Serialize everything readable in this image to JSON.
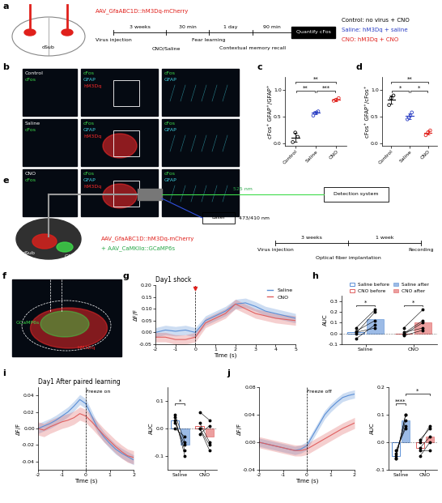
{
  "panel_letters": [
    "a",
    "b",
    "c",
    "d",
    "e",
    "f",
    "g",
    "h",
    "i",
    "j"
  ],
  "panel_a": {
    "virus": "AAV_GfaABC1D::hM3Dq-mCherry",
    "region": "dSub",
    "timeline": {
      "events": [
        "Virus injection",
        "CNO/Saline",
        "Fear learning",
        "Contextual memory recall"
      ],
      "intervals": [
        "3 weeks",
        "30 min",
        "1 day",
        "90 min"
      ],
      "endpoint": "Quantify cFos"
    },
    "groups": [
      {
        "text": "Control: no virus + CNO",
        "color": "#000000"
      },
      {
        "text": "Saline: hM3Dq + saline",
        "color": "#2b3fc4"
      },
      {
        "text": "CNO: hM3Dq + CNO",
        "color": "#e0201b"
      }
    ]
  },
  "panel_b": {
    "rows": [
      "Control",
      "Saline",
      "CNO"
    ],
    "channels": {
      "cFos": "#3ddc4a",
      "GFAP": "#3fd0e0",
      "hM3Dq": "#ff2a2a"
    },
    "columns": [
      [
        "cFos"
      ],
      [
        "cFos",
        "GFAP",
        "hM3Dq"
      ],
      [
        "cFos",
        "GFAP"
      ]
    ]
  },
  "panel_e": {
    "virus": [
      {
        "text": "AAV_GfaABC1D::hM3Dq-mCherry",
        "color": "#e0201b"
      },
      {
        "text": "+ AAV_CaMKIIα::GCaMP6s",
        "color": "#2aa84a"
      }
    ],
    "emission": "525 nm",
    "excitation": "473/410 nm",
    "detector": "Detection system",
    "source": "Laser",
    "regions": [
      "dSub",
      "CA3"
    ],
    "timeline": {
      "events": [
        "Virus injection",
        "Optical fiber implantation",
        "Recording"
      ],
      "intervals": [
        "3 weeks",
        "1 week"
      ]
    }
  },
  "panel_f": {
    "labels": [
      {
        "text": "GCaMP6s",
        "color": "#3ddc4a"
      },
      {
        "text": "hM3Dq",
        "color": "#ff2a2a"
      }
    ]
  },
  "chart_data": [
    {
      "type": "dot",
      "ylabel": "cFos⁺ GFAP⁺/GFAP⁺",
      "categories": [
        "Control",
        "Saline",
        "CNO"
      ],
      "colors": [
        "#000000",
        "#2b3fc4",
        "#e0201b"
      ],
      "points": [
        [
          0.02,
          0.2,
          0.12
        ],
        [
          0.52,
          0.57,
          0.58,
          0.6
        ],
        [
          0.8,
          0.82,
          0.85
        ]
      ],
      "means": [
        0.11,
        0.57,
        0.82
      ],
      "errors": [
        0.09,
        0.03,
        0.025
      ],
      "ylim": [
        -0.05,
        1.25
      ],
      "yticks": [
        {
          "value": 0,
          "label": "0.0"
        },
        {
          "value": 0.5,
          "label": "0.5"
        },
        {
          "value": 1,
          "label": "1.0"
        }
      ],
      "significance": [
        {
          "from": 0,
          "to": 1,
          "label": "**"
        },
        {
          "from": 0,
          "to": 2,
          "label": "**"
        },
        {
          "from": 1,
          "to": 2,
          "label": "***"
        }
      ]
    },
    {
      "type": "dot",
      "ylabel": "cFos⁺ GFAP⁺/cFos⁺",
      "categories": [
        "Control",
        "Saline",
        "CNO"
      ],
      "colors": [
        "#000000",
        "#2b3fc4",
        "#e0201b"
      ],
      "points": [
        [
          0.72,
          0.85,
          0.9
        ],
        [
          0.45,
          0.48,
          0.52,
          0.58
        ],
        [
          0.15,
          0.2,
          0.24
        ]
      ],
      "means": [
        0.82,
        0.51,
        0.2
      ],
      "errors": [
        0.08,
        0.05,
        0.04
      ],
      "ylim": [
        -0.05,
        1.25
      ],
      "yticks": [
        {
          "value": 0,
          "label": "0.0"
        },
        {
          "value": 0.5,
          "label": "0.5"
        },
        {
          "value": 1,
          "label": "1.0"
        }
      ],
      "significance": [
        {
          "from": 0,
          "to": 1,
          "label": "*"
        },
        {
          "from": 0,
          "to": 2,
          "label": "**"
        },
        {
          "from": 1,
          "to": 2,
          "label": "*"
        }
      ]
    },
    {
      "type": "line",
      "title": "Day1 shock",
      "xlabel": "Time (s)",
      "ylabel": "ΔF/F",
      "x": [
        -2,
        -1.5,
        -1,
        -0.5,
        0,
        0.5,
        1,
        1.5,
        2,
        2.5,
        3,
        3.5,
        4,
        4.5,
        5
      ],
      "xlim": [
        -2,
        5
      ],
      "xticks": [
        -2,
        -1,
        0,
        1,
        2,
        3,
        4,
        5
      ],
      "ylim": [
        -0.05,
        0.2
      ],
      "yticks": [
        {
          "value": -0.05,
          "label": "-0.05"
        },
        {
          "value": 0,
          "label": "0.00"
        },
        {
          "value": 0.05,
          "label": "0.05"
        },
        {
          "value": 0.1,
          "label": "0.10"
        },
        {
          "value": 0.15,
          "label": "0.15"
        },
        {
          "value": 0.2,
          "label": "0.20"
        }
      ],
      "event": 0,
      "legend": "upper right",
      "series": [
        {
          "name": "Saline",
          "color": "#5b8fd6",
          "values": [
            0.0,
            0.01,
            0.005,
            0.01,
            0.0,
            0.05,
            0.07,
            0.09,
            0.12,
            0.125,
            0.11,
            0.09,
            0.08,
            0.07,
            0.06
          ],
          "sem": [
            0.02,
            0.02,
            0.02,
            0.02,
            0.02,
            0.02,
            0.02,
            0.02,
            0.02,
            0.02,
            0.02,
            0.02,
            0.02,
            0.02,
            0.02
          ]
        },
        {
          "name": "CNO",
          "color": "#e06060",
          "values": [
            -0.02,
            -0.02,
            -0.03,
            -0.03,
            -0.02,
            0.04,
            0.06,
            0.08,
            0.12,
            0.1,
            0.08,
            0.07,
            0.06,
            0.055,
            0.05
          ],
          "sem": [
            0.02,
            0.02,
            0.02,
            0.02,
            0.02,
            0.02,
            0.02,
            0.02,
            0.02,
            0.02,
            0.02,
            0.02,
            0.02,
            0.02,
            0.02
          ]
        }
      ]
    },
    {
      "type": "paired_bar",
      "ylabel": "AUC",
      "categories": [
        "Saline",
        "CNO"
      ],
      "ylim": [
        -0.1,
        0.35
      ],
      "yticks": [
        -0.1,
        {
          "value": 0,
          "label": "0.0"
        },
        0.1,
        0.2,
        0.3
      ],
      "legend": "upper center",
      "series": [
        {
          "name": "Saline",
          "color": "#5b8fd6",
          "legend_names": [
            "Saline before",
            "Saline after"
          ],
          "values": [
            0.01,
            0.13
          ],
          "points": [
            [
              0.05,
              0.0,
              -0.05,
              0.02,
              0.01
            ],
            [
              0.22,
              0.2,
              0.08,
              0.12,
              0.05
            ]
          ]
        },
        {
          "name": "CNO",
          "color": "#e06060",
          "legend_names": [
            "CNO before",
            "CNO after"
          ],
          "values": [
            0.0,
            0.1
          ],
          "points": [
            [
              0.05,
              -0.02,
              0.0,
              -0.01,
              0.01
            ],
            [
              0.22,
              0.03,
              0.12,
              0.1,
              0.05
            ]
          ]
        }
      ],
      "significance": [
        {
          "from": [
            0,
            0
          ],
          "to": [
            0,
            1
          ],
          "label": "*"
        },
        {
          "from": [
            1,
            0
          ],
          "to": [
            1,
            1
          ],
          "label": "*"
        }
      ]
    },
    {
      "type": "line",
      "title": "Day1 After paired learning",
      "xlabel": "Time (s)",
      "ylabel": "ΔF/F",
      "x": [
        -2,
        -1.75,
        -1.5,
        -1.25,
        -1,
        -0.75,
        -0.5,
        -0.25,
        0,
        0.25,
        0.5,
        0.75,
        1,
        1.25,
        1.5,
        1.75,
        2
      ],
      "xlim": [
        -2,
        2
      ],
      "xticks": [
        -2,
        -1,
        0,
        1,
        2
      ],
      "ylim": [
        -0.05,
        0.05
      ],
      "yticks": [
        {
          "value": -0.04,
          "label": "-0.04"
        },
        {
          "value": -0.02,
          "label": "-0.02"
        },
        {
          "value": 0,
          "label": "0.00"
        },
        {
          "value": 0.02,
          "label": "0.02"
        },
        {
          "value": 0.04,
          "label": "0.04"
        }
      ],
      "event": 0,
      "event_label": "Freeze on",
      "series": [
        {
          "name": "Saline",
          "color": "#5b8fd6",
          "values": [
            0.0,
            0.003,
            0.006,
            0.01,
            0.015,
            0.02,
            0.027,
            0.035,
            0.03,
            0.015,
            0.0,
            -0.01,
            -0.018,
            -0.025,
            -0.03,
            -0.034,
            -0.038
          ],
          "sem": [
            0.006,
            0.006,
            0.006,
            0.006,
            0.006,
            0.006,
            0.006,
            0.006,
            0.006,
            0.006,
            0.006,
            0.006,
            0.006,
            0.006,
            0.006,
            0.006,
            0.006
          ]
        },
        {
          "name": "CNO",
          "color": "#e06060",
          "values": [
            0.0,
            -0.002,
            0.002,
            0.005,
            0.008,
            0.01,
            0.013,
            0.018,
            0.015,
            0.008,
            0.0,
            -0.008,
            -0.015,
            -0.022,
            -0.028,
            -0.033,
            -0.035
          ],
          "sem": [
            0.008,
            0.008,
            0.008,
            0.008,
            0.008,
            0.008,
            0.008,
            0.008,
            0.008,
            0.008,
            0.008,
            0.008,
            0.008,
            0.008,
            0.008,
            0.008,
            0.008
          ]
        }
      ]
    },
    {
      "type": "paired_bar",
      "ylabel": "AUC",
      "categories": [
        "Saline",
        "CNO"
      ],
      "ylim": [
        -0.15,
        0.15
      ],
      "yticks": [
        -0.1,
        {
          "value": 0,
          "label": "0.0"
        },
        0.1
      ],
      "series": [
        {
          "name": "Saline",
          "color": "#5b8fd6",
          "values": [
            0.03,
            -0.06
          ],
          "points": [
            [
              0.05,
              0.03,
              0.02,
              0.0,
              0.04
            ],
            [
              -0.05,
              -0.08,
              -0.06,
              -0.03,
              -0.1
            ]
          ]
        },
        {
          "name": "CNO",
          "color": "#e06060",
          "values": [
            0.01,
            -0.03
          ],
          "points": [
            [
              0.06,
              0.02,
              0.0,
              -0.02,
              0.0
            ],
            [
              0.03,
              -0.05,
              -0.08,
              0.01,
              -0.06
            ]
          ]
        }
      ],
      "significance": [
        {
          "from": [
            0,
            0
          ],
          "to": [
            0,
            1
          ],
          "label": "*"
        }
      ]
    },
    {
      "type": "line",
      "xlabel": "Time (s)",
      "ylabel": "ΔF/F",
      "x": [
        -2,
        -1.75,
        -1.5,
        -1.25,
        -1,
        -0.75,
        -0.5,
        -0.25,
        0,
        0.25,
        0.5,
        0.75,
        1,
        1.25,
        1.5,
        1.75,
        2
      ],
      "xlim": [
        -2,
        2
      ],
      "xticks": [
        -2,
        -1,
        0,
        1,
        2
      ],
      "ylim": [
        -0.04,
        0.08
      ],
      "yticks": [
        {
          "value": -0.04,
          "label": "-0.04"
        },
        {
          "value": 0,
          "label": "0.00"
        },
        {
          "value": 0.04,
          "label": "0.04"
        },
        {
          "value": 0.08,
          "label": "0.08"
        }
      ],
      "event": 0,
      "event_label": "Freeze off",
      "series": [
        {
          "name": "Saline",
          "color": "#5b8fd6",
          "values": [
            0.0,
            -0.002,
            -0.004,
            -0.006,
            -0.008,
            -0.01,
            -0.012,
            -0.01,
            -0.005,
            0.01,
            0.025,
            0.04,
            0.05,
            0.058,
            0.065,
            0.068,
            0.07
          ],
          "sem": [
            0.006,
            0.006,
            0.006,
            0.006,
            0.006,
            0.006,
            0.006,
            0.006,
            0.006,
            0.006,
            0.006,
            0.006,
            0.006,
            0.006,
            0.006,
            0.006,
            0.006
          ]
        },
        {
          "name": "CNO",
          "color": "#e06060",
          "values": [
            0.0,
            -0.002,
            -0.004,
            -0.006,
            -0.008,
            -0.01,
            -0.012,
            -0.012,
            -0.01,
            -0.005,
            0.0,
            0.005,
            0.01,
            0.015,
            0.02,
            0.024,
            0.028
          ],
          "sem": [
            0.008,
            0.008,
            0.008,
            0.008,
            0.008,
            0.008,
            0.008,
            0.008,
            0.008,
            0.008,
            0.008,
            0.008,
            0.008,
            0.008,
            0.008,
            0.008,
            0.008
          ]
        }
      ]
    },
    {
      "type": "paired_bar",
      "ylabel": "AUC",
      "categories": [
        "Saline",
        "CNO"
      ],
      "ylim": [
        -0.1,
        0.2
      ],
      "yticks": [
        -0.1,
        {
          "value": 0,
          "label": "0.0"
        },
        0.1,
        0.2
      ],
      "series": [
        {
          "name": "Saline",
          "color": "#5b8fd6",
          "values": [
            -0.05,
            0.08
          ],
          "points": [
            [
              -0.06,
              -0.05,
              -0.04,
              -0.03,
              -0.06
            ],
            [
              0.1,
              0.08,
              0.06,
              0.05,
              0.1
            ]
          ]
        },
        {
          "name": "CNO",
          "color": "#e06060",
          "values": [
            -0.02,
            0.02
          ],
          "points": [
            [
              -0.02,
              0.0,
              -0.05,
              -0.03,
              0.01
            ],
            [
              0.02,
              0.06,
              0.0,
              -0.03,
              0.05
            ]
          ]
        }
      ],
      "significance": [
        {
          "from": [
            0,
            0
          ],
          "to": [
            0,
            1
          ],
          "label": "****"
        },
        {
          "from": [
            0,
            1
          ],
          "to": [
            1,
            1
          ],
          "label": "*"
        }
      ]
    }
  ]
}
